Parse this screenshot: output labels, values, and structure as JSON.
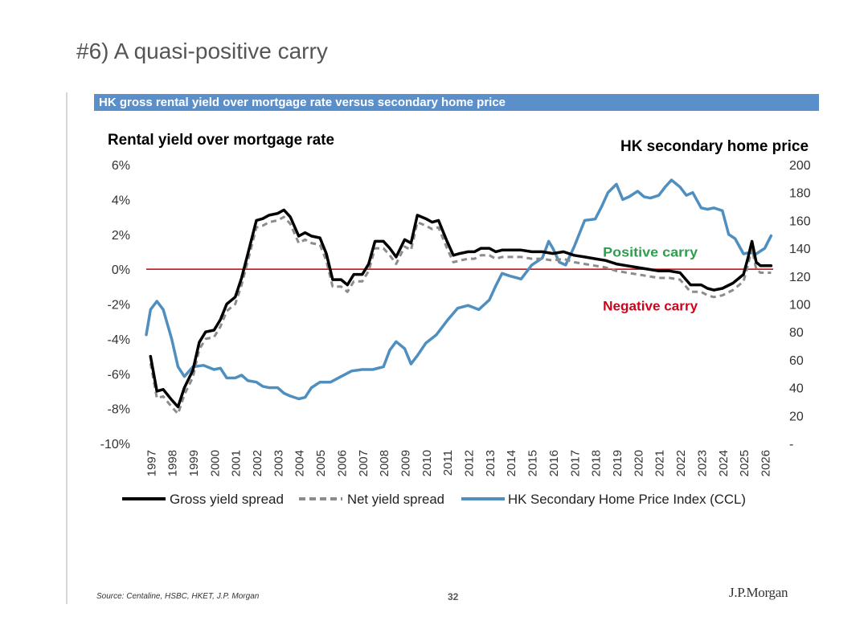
{
  "slide": {
    "title": "#6) A quasi-positive carry",
    "footer_source": "Source: Centaline, HSBC, HKET, J.P. Morgan",
    "page_number": "32",
    "logo_text": "J.P.Morgan"
  },
  "chart_data": {
    "type": "line",
    "title": "HK gross rental yield over mortgage rate versus secondary home price",
    "left_axis_title": "Rental yield over mortgage rate",
    "right_axis_title": "HK secondary home price",
    "x_range": [
      1996.8,
      2026.4
    ],
    "x_ticks": [
      "1997",
      "1998",
      "1999",
      "2000",
      "2001",
      "2002",
      "2003",
      "2004",
      "2005",
      "2006",
      "2007",
      "2008",
      "2009",
      "2010",
      "2011",
      "2012",
      "2013",
      "2014",
      "2015",
      "2016",
      "2017",
      "2018",
      "2019",
      "2020",
      "2021",
      "2022",
      "2023",
      "2024",
      "2025",
      "2026"
    ],
    "y_left": {
      "range": [
        -10,
        6
      ],
      "ticks": [
        6,
        4,
        2,
        0,
        -2,
        -4,
        -6,
        -8,
        -10
      ],
      "tick_labels": [
        "6%",
        "4%",
        "2%",
        "0%",
        "-2%",
        "-4%",
        "-6%",
        "-8%",
        "-10%"
      ]
    },
    "y_right": {
      "range": [
        0,
        200
      ],
      "ticks": [
        200,
        180,
        160,
        140,
        120,
        100,
        80,
        60,
        40,
        20,
        0
      ],
      "tick_labels": [
        "200",
        "180",
        "160",
        "140",
        "120",
        "100",
        "80",
        "60",
        "40",
        "20",
        "-"
      ]
    },
    "reference_line": {
      "y": 0,
      "color": "#c00000"
    },
    "annotations": [
      {
        "text": "Positive carry",
        "x": 2020.6,
        "y": 1.0,
        "color": "#2e9e4e"
      },
      {
        "text": "Negative carry",
        "x": 2020.6,
        "y": -2.1,
        "color": "#d0021b"
      }
    ],
    "series": [
      {
        "name": "Gross yield spread",
        "axis": "left",
        "color": "#000000",
        "style": "solid",
        "x": [
          1997.0,
          1997.3,
          1997.6,
          1998.0,
          1998.3,
          1998.6,
          1999.0,
          1999.3,
          1999.6,
          2000.0,
          2000.3,
          2000.6,
          2001.0,
          2001.3,
          2001.6,
          2002.0,
          2002.3,
          2002.6,
          2003.0,
          2003.3,
          2003.6,
          2004.0,
          2004.3,
          2004.6,
          2005.0,
          2005.3,
          2005.6,
          2006.0,
          2006.3,
          2006.6,
          2007.0,
          2007.3,
          2007.6,
          2008.0,
          2008.3,
          2008.6,
          2009.0,
          2009.3,
          2009.6,
          2010.0,
          2010.3,
          2010.6,
          2011.0,
          2011.3,
          2011.6,
          2012.0,
          2012.3,
          2012.6,
          2013.0,
          2013.3,
          2013.6,
          2014.0,
          2014.5,
          2015.0,
          2015.5,
          2016.0,
          2016.5,
          2017.0,
          2017.5,
          2018.0,
          2018.5,
          2019.0,
          2019.5,
          2020.0,
          2020.5,
          2021.0,
          2021.5,
          2022.0,
          2022.5,
          2023.0,
          2023.3,
          2023.6,
          2024.0,
          2024.5,
          2025.0,
          2025.2,
          2025.4,
          2025.6,
          2025.8,
          2026.0,
          2026.3
        ],
        "values": [
          -5.0,
          -7.0,
          -6.9,
          -7.5,
          -7.9,
          -6.8,
          -5.8,
          -4.2,
          -3.6,
          -3.5,
          -2.9,
          -2.0,
          -1.6,
          -0.5,
          0.9,
          2.8,
          2.9,
          3.1,
          3.2,
          3.4,
          3.0,
          1.9,
          2.1,
          1.9,
          1.8,
          0.9,
          -0.6,
          -0.6,
          -0.9,
          -0.3,
          -0.3,
          0.3,
          1.6,
          1.6,
          1.2,
          0.7,
          1.7,
          1.5,
          3.1,
          2.9,
          2.7,
          2.8,
          1.6,
          0.8,
          0.9,
          1.0,
          1.0,
          1.2,
          1.2,
          1.0,
          1.1,
          1.1,
          1.1,
          1.0,
          1.0,
          0.9,
          1.0,
          0.8,
          0.7,
          0.6,
          0.5,
          0.3,
          0.2,
          0.1,
          0.0,
          -0.1,
          -0.1,
          -0.2,
          -0.9,
          -0.9,
          -1.1,
          -1.2,
          -1.1,
          -0.8,
          -0.3,
          0.6,
          1.6,
          0.4,
          0.2,
          0.2,
          0.2
        ]
      },
      {
        "name": "Net yield spread",
        "axis": "left",
        "color": "#8c8c8c",
        "style": "dashed",
        "x": [
          1997.0,
          1997.3,
          1997.6,
          1998.0,
          1998.3,
          1998.6,
          1999.0,
          1999.3,
          1999.6,
          2000.0,
          2000.3,
          2000.6,
          2001.0,
          2001.3,
          2001.6,
          2002.0,
          2002.3,
          2002.6,
          2003.0,
          2003.3,
          2003.6,
          2004.0,
          2004.3,
          2004.6,
          2005.0,
          2005.3,
          2005.6,
          2006.0,
          2006.3,
          2006.6,
          2007.0,
          2007.3,
          2007.6,
          2008.0,
          2008.3,
          2008.6,
          2009.0,
          2009.3,
          2009.6,
          2010.0,
          2010.3,
          2010.6,
          2011.0,
          2011.3,
          2011.6,
          2012.0,
          2012.3,
          2012.6,
          2013.0,
          2013.3,
          2013.6,
          2014.0,
          2014.5,
          2015.0,
          2015.5,
          2016.0,
          2016.5,
          2017.0,
          2017.5,
          2018.0,
          2018.5,
          2019.0,
          2019.5,
          2020.0,
          2020.5,
          2021.0,
          2021.5,
          2022.0,
          2022.5,
          2023.0,
          2023.3,
          2023.6,
          2024.0,
          2024.5,
          2025.0,
          2025.2,
          2025.4,
          2025.6,
          2025.8,
          2026.0,
          2026.3
        ],
        "values": [
          -5.4,
          -7.4,
          -7.3,
          -7.9,
          -8.3,
          -7.2,
          -6.2,
          -4.6,
          -4.0,
          -3.9,
          -3.3,
          -2.4,
          -2.0,
          -0.9,
          0.5,
          2.4,
          2.5,
          2.7,
          2.8,
          3.0,
          2.6,
          1.5,
          1.7,
          1.5,
          1.4,
          0.5,
          -1.0,
          -1.0,
          -1.3,
          -0.7,
          -0.7,
          -0.1,
          1.2,
          1.2,
          0.8,
          0.3,
          1.3,
          1.1,
          2.7,
          2.5,
          2.3,
          2.4,
          1.2,
          0.4,
          0.5,
          0.6,
          0.6,
          0.8,
          0.8,
          0.6,
          0.7,
          0.7,
          0.7,
          0.6,
          0.6,
          0.5,
          0.6,
          0.4,
          0.3,
          0.2,
          0.1,
          -0.1,
          -0.2,
          -0.3,
          -0.4,
          -0.5,
          -0.5,
          -0.6,
          -1.3,
          -1.3,
          -1.5,
          -1.6,
          -1.5,
          -1.2,
          -0.7,
          0.2,
          1.2,
          0.0,
          -0.2,
          -0.2,
          -0.2
        ]
      },
      {
        "name": "HK Secondary Home Price Index (CCL)",
        "axis": "right",
        "color": "#4f8fbf",
        "style": "solid",
        "x": [
          1996.8,
          1997.0,
          1997.3,
          1997.6,
          1998.0,
          1998.3,
          1998.6,
          1999.0,
          1999.5,
          2000.0,
          2000.3,
          2000.6,
          2001.0,
          2001.3,
          2001.6,
          2002.0,
          2002.3,
          2002.6,
          2003.0,
          2003.3,
          2003.6,
          2004.0,
          2004.3,
          2004.6,
          2005.0,
          2005.5,
          2006.0,
          2006.5,
          2007.0,
          2007.5,
          2008.0,
          2008.3,
          2008.6,
          2009.0,
          2009.3,
          2009.6,
          2010.0,
          2010.5,
          2011.0,
          2011.5,
          2012.0,
          2012.5,
          2013.0,
          2013.3,
          2013.6,
          2014.0,
          2014.5,
          2015.0,
          2015.5,
          2015.8,
          2016.0,
          2016.3,
          2016.6,
          2017.0,
          2017.5,
          2018.0,
          2018.3,
          2018.6,
          2019.0,
          2019.3,
          2019.6,
          2020.0,
          2020.3,
          2020.6,
          2021.0,
          2021.3,
          2021.6,
          2022.0,
          2022.3,
          2022.6,
          2023.0,
          2023.3,
          2023.6,
          2024.0,
          2024.3,
          2024.6,
          2025.0,
          2025.3,
          2025.6,
          2026.0,
          2026.3
        ],
        "values": [
          78,
          96,
          102,
          96,
          75,
          55,
          48,
          55,
          56,
          53,
          54,
          47,
          47,
          49,
          45,
          44,
          41,
          40,
          40,
          36,
          34,
          32,
          33,
          40,
          44,
          44,
          48,
          52,
          53,
          53,
          55,
          67,
          73,
          68,
          57,
          63,
          72,
          78,
          88,
          97,
          99,
          96,
          103,
          113,
          122,
          120,
          118,
          128,
          133,
          145,
          140,
          130,
          128,
          141,
          160,
          161,
          170,
          180,
          186,
          175,
          177,
          181,
          177,
          176,
          178,
          184,
          189,
          184,
          178,
          180,
          169,
          168,
          169,
          167,
          150,
          147,
          136,
          137,
          136,
          140,
          149
        ]
      }
    ]
  }
}
